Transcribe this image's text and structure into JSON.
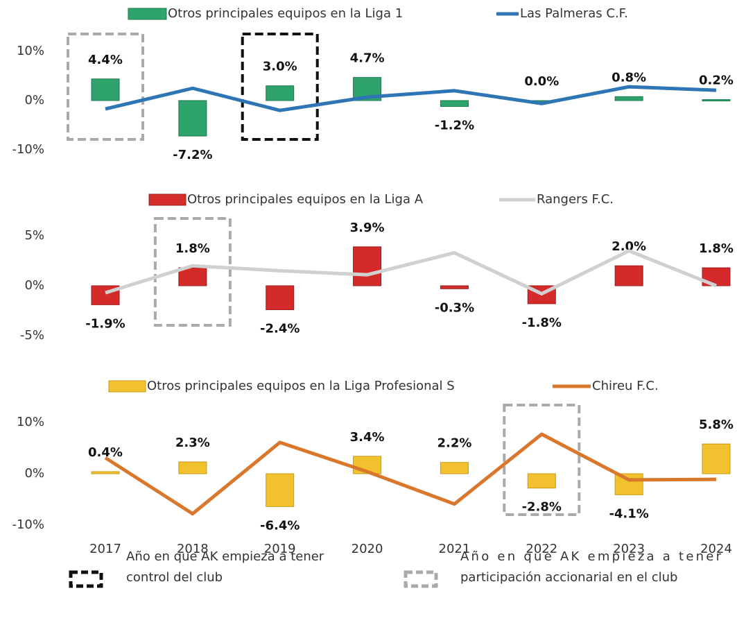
{
  "chart_data": [
    {
      "type": "bar_line",
      "series": [
        {
          "name": "Otros principales equipos en la Liga 1",
          "type": "bar",
          "color": "#2ea36b",
          "stroke": "#1d7a4c",
          "values": [
            4.4,
            -7.2,
            3.0,
            4.7,
            -1.2,
            0.0,
            0.8,
            0.2
          ],
          "value_labels": [
            "4.4%",
            "-7.2%",
            "3.0%",
            "4.7%",
            "-1.2%",
            "0.0%",
            "0.8%",
            "0.2%"
          ]
        },
        {
          "name": "Las Palmeras C.F.",
          "type": "line",
          "color": "#2e75b6",
          "values": [
            -1.7,
            2.5,
            -2.0,
            0.7,
            2.0,
            -0.6,
            2.8,
            2.1
          ]
        }
      ],
      "ylim": [
        -10,
        10
      ],
      "yticks": [
        {
          "value": 10,
          "label": "10%"
        },
        {
          "value": 0,
          "label": "0%"
        },
        {
          "value": -10,
          "label": "-10%"
        }
      ],
      "highlights": [
        {
          "at": 0,
          "color": "#aaaaaa"
        },
        {
          "at": 2,
          "color": "#111111"
        }
      ]
    },
    {
      "type": "bar_line",
      "series": [
        {
          "name": "Otros principales equipos en la Liga A",
          "type": "bar",
          "color": "#d42a2a",
          "stroke": "#9e1c1c",
          "values": [
            -1.9,
            1.8,
            -2.4,
            3.9,
            -0.3,
            -1.8,
            2.0,
            1.8
          ],
          "value_labels": [
            "-1.9%",
            "1.8%",
            "-2.4%",
            "3.9%",
            "-0.3%",
            "-1.8%",
            "2.0%",
            "1.8%"
          ]
        },
        {
          "name": "Rangers F.C.",
          "type": "line",
          "color": "#d0d0d0",
          "values": [
            -0.7,
            2.0,
            1.5,
            1.1,
            3.3,
            -0.8,
            3.5,
            0.0
          ]
        }
      ],
      "ylim": [
        -5,
        5
      ],
      "yticks": [
        {
          "value": 5,
          "label": "5%"
        },
        {
          "value": 0,
          "label": "0%"
        },
        {
          "value": -5,
          "label": "-5%"
        }
      ],
      "highlights": [
        {
          "at": 1,
          "color": "#aaaaaa"
        }
      ]
    },
    {
      "type": "bar_line",
      "categories": [
        "2017",
        "2018",
        "2019",
        "2020",
        "2021",
        "2022",
        "2023",
        "2024"
      ],
      "series": [
        {
          "name": "Otros principales equipos en la Liga Profesional S",
          "type": "bar",
          "color": "#f2c12e",
          "stroke": "#c99a12",
          "values": [
            0.4,
            2.3,
            -6.4,
            3.4,
            2.2,
            -2.8,
            -4.1,
            5.8
          ],
          "value_labels": [
            "0.4%",
            "2.3%",
            "-6.4%",
            "3.4%",
            "2.2%",
            "-2.8%",
            "-4.1%",
            "5.8%"
          ]
        },
        {
          "name": "Chireu F.C.",
          "type": "line",
          "color": "#d9782d",
          "values": [
            3.1,
            -7.8,
            6.1,
            0.4,
            -5.9,
            7.7,
            -1.2,
            -1.1
          ]
        }
      ],
      "ylim": [
        -10,
        10
      ],
      "yticks": [
        {
          "value": 10,
          "label": "10%"
        },
        {
          "value": 0,
          "label": "0%"
        },
        {
          "value": -10,
          "label": "-10%"
        }
      ],
      "highlights": [
        {
          "at": 5,
          "color": "#aaaaaa"
        }
      ]
    }
  ],
  "notes": [
    {
      "color": "#111111",
      "lines": [
        "Año en que AK empieza a tener",
        "control del club"
      ]
    },
    {
      "color": "#aaaaaa",
      "lines": [
        "Año en que AK empieza a tener",
        "participación accionarial en el club"
      ]
    }
  ]
}
